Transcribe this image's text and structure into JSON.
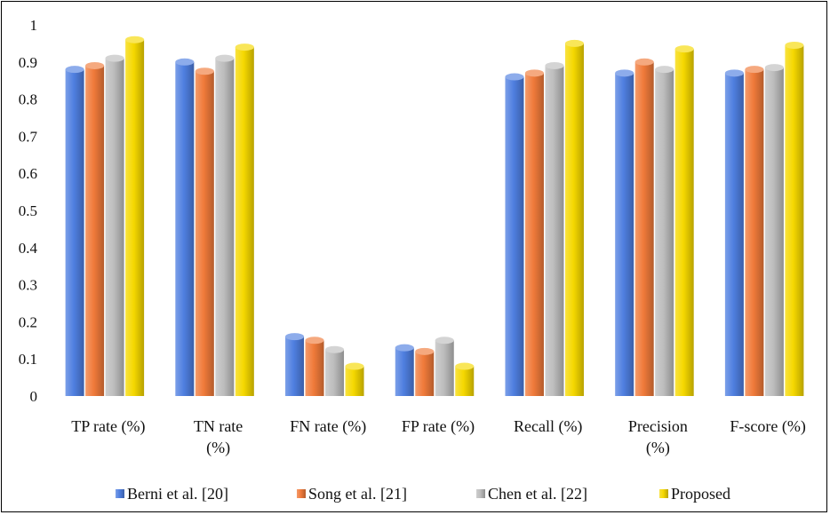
{
  "chart_data": {
    "type": "bar",
    "categories": [
      [
        "TP rate (%)"
      ],
      [
        "TN rate",
        "(%)"
      ],
      [
        "FN rate (%)"
      ],
      [
        "FP rate (%)"
      ],
      [
        "Recall (%)"
      ],
      [
        "Precision",
        "(%)"
      ],
      [
        "F-score (%)"
      ]
    ],
    "series": [
      {
        "name": "Berni et al. [20]",
        "color": "#4f7fe0",
        "values": [
          0.88,
          0.9,
          0.16,
          0.13,
          0.86,
          0.87,
          0.87
        ]
      },
      {
        "name": "Song et al. [21]",
        "color": "#f07a3a",
        "values": [
          0.89,
          0.875,
          0.15,
          0.12,
          0.87,
          0.9,
          0.88
        ]
      },
      {
        "name": "Chen et al. [22]",
        "color": "#bdbdbd",
        "values": [
          0.91,
          0.91,
          0.125,
          0.15,
          0.89,
          0.88,
          0.885
        ]
      },
      {
        "name": "Proposed",
        "color": "#f5d800",
        "values": [
          0.96,
          0.94,
          0.08,
          0.08,
          0.95,
          0.935,
          0.945
        ]
      }
    ],
    "yticks": [
      "0",
      "0.1",
      "0.2",
      "0.3",
      "0.4",
      "0.5",
      "0.6",
      "0.7",
      "0.8",
      "0.9",
      "1"
    ],
    "ylim": [
      0,
      1
    ],
    "title": "",
    "xlabel": "",
    "ylabel": "",
    "grid": false,
    "legend_position": "bottom"
  }
}
